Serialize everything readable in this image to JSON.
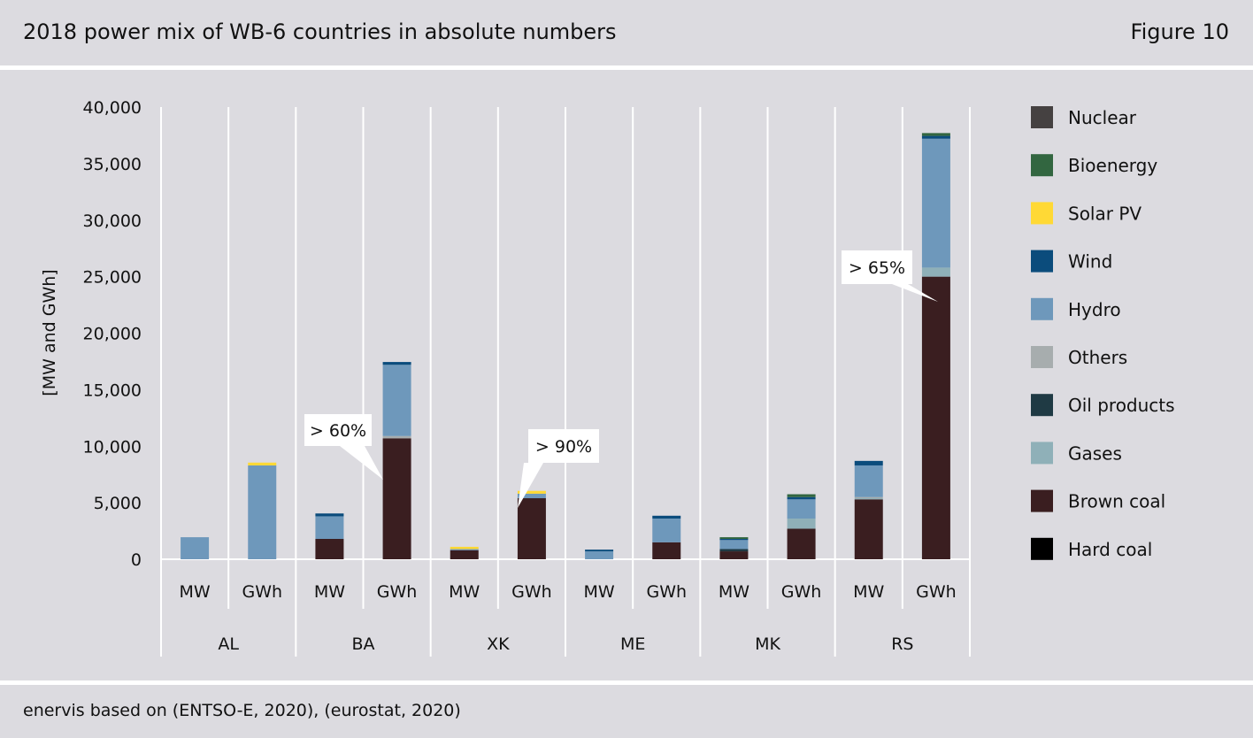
{
  "header": {
    "title": "2018 power mix of WB-6 countries in absolute numbers",
    "figure": "Figure 10"
  },
  "footer": {
    "source": "enervis based on (ENTSO-E, 2020), (eurostat, 2020)"
  },
  "chart_data": {
    "type": "bar",
    "stacked": true,
    "ylabel": "[MW and GWh]",
    "ylim": [
      0,
      40000
    ],
    "yticks": [
      0,
      5000,
      10000,
      15000,
      20000,
      25000,
      30000,
      35000,
      40000
    ],
    "ytick_labels": [
      "0",
      "5,000",
      "10,000",
      "15,000",
      "20,000",
      "25,000",
      "30,000",
      "35,000",
      "40,000"
    ],
    "grid": "vertical",
    "legend_position": "right",
    "groups": [
      "AL",
      "BA",
      "XK",
      "ME",
      "MK",
      "RS"
    ],
    "categories": [
      "MW",
      "GWh",
      "MW",
      "GWh",
      "MW",
      "GWh",
      "MW",
      "GWh",
      "MW",
      "GWh",
      "MW",
      "GWh"
    ],
    "series": [
      {
        "name": "Hard coal",
        "color": "#000000",
        "values": [
          0,
          0,
          0,
          0,
          0,
          0,
          0,
          0,
          0,
          0,
          0,
          0
        ]
      },
      {
        "name": "Brown coal",
        "color": "#3a1e20",
        "values": [
          0,
          0,
          1800,
          10700,
          800,
          5400,
          0,
          1500,
          700,
          2700,
          5300,
          25000
        ]
      },
      {
        "name": "Gases",
        "color": "#8fb0b8",
        "values": [
          0,
          0,
          0,
          0,
          0,
          0,
          0,
          0,
          0,
          900,
          100,
          800
        ]
      },
      {
        "name": "Oil products",
        "color": "#1f3a44",
        "values": [
          0,
          0,
          0,
          0,
          0,
          0,
          0,
          0,
          200,
          0,
          0,
          0
        ]
      },
      {
        "name": "Others",
        "color": "#a7adae",
        "values": [
          0,
          0,
          0,
          200,
          0,
          0,
          0,
          0,
          0,
          0,
          100,
          0
        ]
      },
      {
        "name": "Hydro",
        "color": "#6e98bb",
        "values": [
          1950,
          8300,
          2000,
          6300,
          100,
          400,
          700,
          2100,
          800,
          1700,
          2800,
          11400
        ]
      },
      {
        "name": "Wind",
        "color": "#0b4c7c",
        "values": [
          0,
          0,
          250,
          250,
          0,
          0,
          150,
          250,
          100,
          200,
          400,
          250
        ]
      },
      {
        "name": "Solar PV",
        "color": "#ffd935",
        "values": [
          0,
          250,
          0,
          0,
          200,
          250,
          0,
          0,
          0,
          0,
          0,
          0
        ]
      },
      {
        "name": "Bioenergy",
        "color": "#326640",
        "values": [
          0,
          0,
          0,
          0,
          0,
          0,
          0,
          0,
          150,
          250,
          0,
          250
        ]
      },
      {
        "name": "Nuclear",
        "color": "#454141",
        "values": [
          0,
          0,
          0,
          0,
          0,
          0,
          0,
          0,
          0,
          0,
          0,
          0
        ]
      }
    ],
    "legend_order": [
      "Nuclear",
      "Bioenergy",
      "Solar PV",
      "Wind",
      "Hydro",
      "Others",
      "Oil products",
      "Gases",
      "Brown coal",
      "Hard coal"
    ],
    "annotations": [
      {
        "text": "> 60%",
        "bar_index": 3
      },
      {
        "text": "> 90%",
        "bar_index": 5
      },
      {
        "text": "> 65%",
        "bar_index": 11
      }
    ]
  }
}
